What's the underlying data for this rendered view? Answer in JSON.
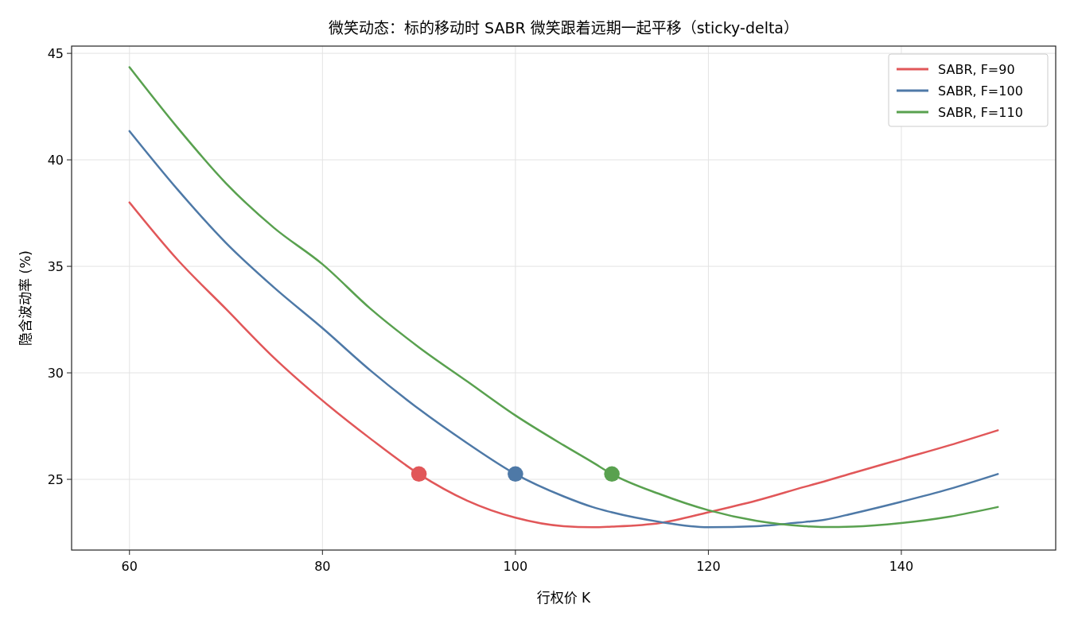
{
  "chart_data": {
    "type": "line",
    "title": "微笑动态：标的移动时 SABR 微笑跟着远期一起平移（sticky-delta）",
    "xlabel": "行权价 K",
    "ylabel": "隐含波动率 (%)",
    "x": [
      60,
      65,
      70,
      75,
      80,
      85,
      90,
      95,
      100,
      105,
      108,
      110,
      115,
      120,
      125,
      130,
      132,
      135,
      140,
      145,
      150
    ],
    "series": [
      {
        "name": "SABR, F=90",
        "color": "#e15759",
        "values": [
          38.0,
          35.3,
          33.0,
          30.7,
          28.7,
          26.9,
          25.25,
          24.0,
          23.2,
          22.8,
          22.75,
          22.78,
          22.95,
          23.45,
          24.0,
          24.65,
          24.9,
          25.3,
          25.95,
          26.6,
          27.3
        ]
      },
      {
        "name": "SABR, F=100",
        "color": "#4e79a7",
        "values": [
          41.35,
          38.6,
          36.1,
          34.0,
          32.1,
          30.1,
          28.3,
          26.7,
          25.25,
          24.2,
          23.7,
          23.45,
          23.0,
          22.75,
          22.8,
          23.0,
          23.1,
          23.4,
          23.95,
          24.55,
          25.25
        ]
      },
      {
        "name": "SABR, F=110",
        "color": "#59a14f",
        "values": [
          44.35,
          41.5,
          38.9,
          36.8,
          35.1,
          33.0,
          31.2,
          29.6,
          28.0,
          26.6,
          25.8,
          25.25,
          24.3,
          23.55,
          23.05,
          22.8,
          22.76,
          22.78,
          22.95,
          23.25,
          23.7
        ]
      },
      {
        "type": "scatter",
        "x": [
          90,
          100,
          110
        ],
        "values": [
          25.25,
          25.25,
          25.25
        ],
        "colors": [
          "#e15759",
          "#4e79a7",
          "#59a14f"
        ],
        "marker": "circle"
      }
    ],
    "xlim": [
      54,
      156
    ],
    "ylim": [
      21.68,
      45.34
    ],
    "xticks": [
      60,
      80,
      100,
      120,
      140
    ],
    "yticks": [
      25,
      30,
      35,
      40,
      45
    ],
    "grid": true,
    "legend": "top right",
    "line_style": "solid"
  }
}
